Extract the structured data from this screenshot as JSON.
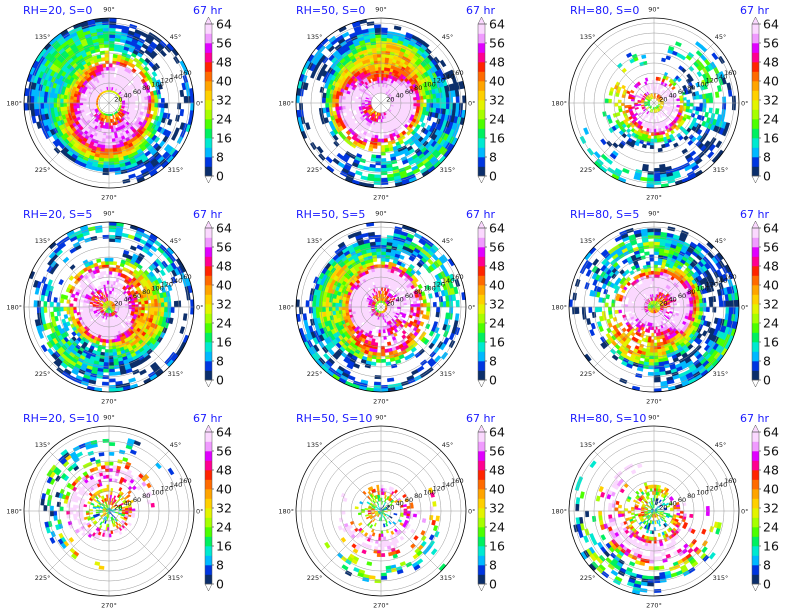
{
  "chart_data": {
    "type": "heatmap",
    "projection": "polar",
    "colorbar": {
      "ticks": [
        "0",
        "8",
        "16",
        "24",
        "32",
        "40",
        "48",
        "56",
        "64"
      ],
      "colors": [
        "#0b2e6b",
        "#0036e0",
        "#00b8ff",
        "#00e9d0",
        "#00f060",
        "#4cff00",
        "#a6ff00",
        "#e3f400",
        "#ffd000",
        "#ffa400",
        "#ff6a00",
        "#ff2400",
        "#ff0090",
        "#e000ff",
        "#f09aff",
        "#fbd8ff"
      ]
    },
    "azimuth_labels": [
      "90°",
      "45°",
      "0°",
      "315°",
      "270°",
      "225°",
      "180°",
      "135°"
    ],
    "radial_tick_labels": [
      "20",
      "40",
      "60",
      "80",
      "100",
      "120",
      "140",
      "160"
    ],
    "panels": [
      {
        "title_left": "RH=20, S=0",
        "title_right": "67 hr",
        "col": 0,
        "row": 0
      },
      {
        "title_left": "RH=50, S=0",
        "title_right": "67 hr",
        "col": 1,
        "row": 0
      },
      {
        "title_left": "RH=80, S=0",
        "title_right": "67 hr",
        "col": 2,
        "row": 0
      },
      {
        "title_left": "RH=20, S=5",
        "title_right": "67 hr",
        "col": 0,
        "row": 1
      },
      {
        "title_left": "RH=50, S=5",
        "title_right": "67 hr",
        "col": 1,
        "row": 1
      },
      {
        "title_left": "RH=80, S=5",
        "title_right": "67 hr",
        "col": 2,
        "row": 1
      },
      {
        "title_left": "RH=20, S=10",
        "title_right": "67 hr",
        "col": 0,
        "row": 2
      },
      {
        "title_left": "RH=50, S=10",
        "title_right": "67 hr",
        "col": 1,
        "row": 2
      },
      {
        "title_left": "RH=80, S=10",
        "title_right": "67 hr",
        "col": 2,
        "row": 2
      }
    ]
  }
}
